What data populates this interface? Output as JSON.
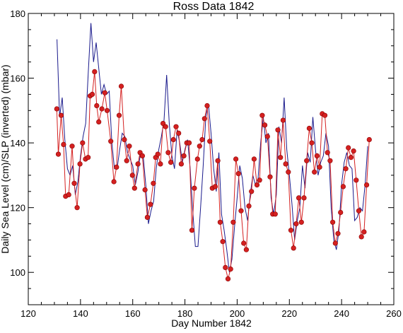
{
  "chart_data": {
    "type": "line",
    "title": "Ross Data 1842",
    "xlabel": "Day Number 1842",
    "ylabel": "Daily Sea Level (cm)/SLP (inverted) (mbar)",
    "xlim": [
      120,
      260
    ],
    "ylim": [
      90,
      180
    ],
    "xticks": [
      120,
      140,
      160,
      180,
      200,
      220,
      240,
      260
    ],
    "yticks": [
      100,
      120,
      140,
      160,
      180
    ],
    "grid": false,
    "legend": "none",
    "colors": {
      "blue_series": "#1a1a8c",
      "red_series": "#d42020",
      "marker_edge": "#8b0000",
      "axis": "#000000"
    },
    "series": [
      {
        "style": "line-blue",
        "points": [
          [
            131,
            172
          ],
          [
            132,
            148
          ],
          [
            133,
            154
          ],
          [
            134,
            141
          ],
          [
            135,
            132
          ],
          [
            136,
            130
          ],
          [
            137,
            133
          ],
          [
            138,
            124
          ],
          [
            139,
            128
          ],
          [
            140,
            136
          ],
          [
            141,
            142
          ],
          [
            142,
            146
          ],
          [
            143,
            162
          ],
          [
            144,
            177
          ],
          [
            145,
            165
          ],
          [
            146,
            171
          ],
          [
            147,
            163
          ],
          [
            148,
            155
          ],
          [
            149,
            158
          ],
          [
            150,
            155
          ],
          [
            151,
            156
          ],
          [
            152,
            140
          ],
          [
            153,
            132
          ],
          [
            154,
            132
          ],
          [
            155,
            138
          ],
          [
            156,
            143
          ],
          [
            157,
            142
          ],
          [
            158,
            137
          ],
          [
            159,
            135
          ],
          [
            160,
            133
          ],
          [
            161,
            127
          ],
          [
            162,
            131
          ],
          [
            163,
            137
          ],
          [
            164,
            136
          ],
          [
            165,
            127
          ],
          [
            166,
            115
          ],
          [
            167,
            119
          ],
          [
            168,
            122
          ],
          [
            169,
            132
          ],
          [
            170,
            138
          ],
          [
            171,
            142
          ],
          [
            172,
            147
          ],
          [
            173,
            161
          ],
          [
            174,
            146
          ],
          [
            175,
            136
          ],
          [
            176,
            132
          ],
          [
            177,
            144
          ],
          [
            178,
            140
          ],
          [
            179,
            134
          ],
          [
            180,
            138
          ],
          [
            181,
            141
          ],
          [
            182,
            132
          ],
          [
            183,
            119
          ],
          [
            184,
            108
          ],
          [
            185,
            108
          ],
          [
            186,
            120
          ],
          [
            187,
            133
          ],
          [
            188,
            148
          ],
          [
            189,
            152
          ],
          [
            190,
            143
          ],
          [
            191,
            132
          ],
          [
            192,
            125
          ],
          [
            193,
            137
          ],
          [
            194,
            118
          ],
          [
            195,
            113
          ],
          [
            196,
            107
          ],
          [
            197,
            100
          ],
          [
            198,
            104
          ],
          [
            199,
            114
          ],
          [
            200,
            123
          ],
          [
            201,
            133
          ],
          [
            202,
            129
          ],
          [
            203,
            120
          ],
          [
            204,
            116
          ],
          [
            205,
            124
          ],
          [
            206,
            130
          ],
          [
            207,
            127
          ],
          [
            208,
            129
          ],
          [
            209,
            140
          ],
          [
            210,
            148
          ],
          [
            211,
            140
          ],
          [
            212,
            143
          ],
          [
            213,
            123
          ],
          [
            214,
            118
          ],
          [
            215,
            124
          ],
          [
            216,
            145
          ],
          [
            217,
            140
          ],
          [
            218,
            154
          ],
          [
            219,
            138
          ],
          [
            220,
            130
          ],
          [
            221,
            121
          ],
          [
            222,
            110
          ],
          [
            223,
            116
          ],
          [
            224,
            120
          ],
          [
            225,
            133
          ],
          [
            226,
            126
          ],
          [
            227,
            137
          ],
          [
            228,
            134
          ],
          [
            229,
            148
          ],
          [
            230,
            138
          ],
          [
            231,
            130
          ],
          [
            232,
            134
          ],
          [
            233,
            136
          ],
          [
            234,
            143
          ],
          [
            235,
            139
          ],
          [
            236,
            120
          ],
          [
            237,
            110
          ],
          [
            238,
            107
          ],
          [
            239,
            113
          ],
          [
            240,
            127
          ],
          [
            241,
            134
          ],
          [
            242,
            137
          ],
          [
            243,
            133
          ],
          [
            244,
            132
          ],
          [
            245,
            116
          ],
          [
            246,
            117
          ],
          [
            247,
            120
          ],
          [
            248,
            119
          ],
          [
            249,
            127
          ],
          [
            250,
            139
          ]
        ]
      },
      {
        "style": "line-red-markers",
        "points": [
          [
            130.9,
            150.5
          ],
          [
            131.5,
            136.5
          ],
          [
            132.6,
            148.5
          ],
          [
            133.5,
            139.5
          ],
          [
            134.3,
            123.5
          ],
          [
            135.5,
            124.0
          ],
          [
            136.8,
            139.0
          ],
          [
            137.6,
            127.5
          ],
          [
            138.7,
            120.0
          ],
          [
            139.8,
            133.5
          ],
          [
            140.8,
            140.0
          ],
          [
            141.9,
            135.0
          ],
          [
            142.9,
            135.5
          ],
          [
            143.7,
            154.5
          ],
          [
            144.5,
            155.0
          ],
          [
            145.4,
            162.0
          ],
          [
            146.2,
            151.5
          ],
          [
            147.0,
            146.5
          ],
          [
            148.2,
            150.5
          ],
          [
            149.3,
            155.5
          ],
          [
            150.2,
            150.0
          ],
          [
            151.6,
            140.5
          ],
          [
            152.8,
            128.0
          ],
          [
            153.8,
            132.5
          ],
          [
            154.8,
            148.5
          ],
          [
            155.6,
            157.5
          ],
          [
            156.8,
            141.0
          ],
          [
            157.7,
            134.5
          ],
          [
            158.7,
            139.0
          ],
          [
            159.9,
            130.0
          ],
          [
            160.7,
            126.0
          ],
          [
            162.0,
            133.5
          ],
          [
            162.8,
            137.0
          ],
          [
            163.7,
            136.0
          ],
          [
            164.7,
            125.5
          ],
          [
            165.6,
            117.0
          ],
          [
            166.8,
            121.0
          ],
          [
            167.9,
            127.5
          ],
          [
            168.8,
            135.5
          ],
          [
            169.6,
            136.5
          ],
          [
            170.6,
            133.5
          ],
          [
            171.6,
            146.0
          ],
          [
            172.6,
            145.0
          ],
          [
            173.6,
            137.0
          ],
          [
            174.6,
            134.0
          ],
          [
            175.6,
            141.0
          ],
          [
            176.6,
            145.0
          ],
          [
            177.6,
            143.0
          ],
          [
            178.6,
            133.5
          ],
          [
            179.6,
            136.0
          ],
          [
            180.7,
            140.0
          ],
          [
            181.6,
            140.0
          ],
          [
            182.7,
            113.0
          ],
          [
            183.6,
            126.0
          ],
          [
            184.8,
            135.0
          ],
          [
            185.6,
            139.0
          ],
          [
            186.6,
            141.0
          ],
          [
            187.5,
            147.5
          ],
          [
            188.5,
            151.5
          ],
          [
            189.5,
            140.5
          ],
          [
            190.5,
            126.0
          ],
          [
            191.6,
            126.5
          ],
          [
            192.6,
            134.5
          ],
          [
            193.5,
            115.5
          ],
          [
            194.5,
            109.5
          ],
          [
            195.5,
            101.5
          ],
          [
            196.5,
            98.0
          ],
          [
            197.5,
            101.0
          ],
          [
            198.5,
            115.5
          ],
          [
            199.5,
            135.0
          ],
          [
            200.5,
            130.5
          ],
          [
            201.5,
            119.0
          ],
          [
            202.5,
            109.0
          ],
          [
            203.5,
            107.0
          ],
          [
            204.5,
            120.5
          ],
          [
            205.5,
            125.0
          ],
          [
            206.5,
            135.0
          ],
          [
            207.6,
            127.0
          ],
          [
            208.6,
            128.5
          ],
          [
            209.6,
            148.5
          ],
          [
            210.6,
            145.5
          ],
          [
            211.6,
            142.0
          ],
          [
            212.6,
            129.5
          ],
          [
            213.6,
            118.0
          ],
          [
            214.6,
            118.0
          ],
          [
            215.6,
            144.0
          ],
          [
            216.6,
            135.5
          ],
          [
            217.6,
            147.0
          ],
          [
            218.6,
            133.5
          ],
          [
            219.6,
            131.0
          ],
          [
            220.6,
            113.0
          ],
          [
            221.6,
            107.5
          ],
          [
            222.6,
            115.0
          ],
          [
            223.6,
            123.0
          ],
          [
            224.6,
            115.5
          ],
          [
            225.6,
            123.0
          ],
          [
            226.6,
            134.5
          ],
          [
            227.6,
            144.5
          ],
          [
            228.6,
            140.0
          ],
          [
            229.6,
            131.0
          ],
          [
            230.6,
            136.0
          ],
          [
            231.6,
            132.5
          ],
          [
            232.6,
            149.0
          ],
          [
            233.6,
            148.5
          ],
          [
            234.6,
            137.0
          ],
          [
            235.6,
            134.5
          ],
          [
            236.6,
            115.5
          ],
          [
            237.6,
            109.0
          ],
          [
            238.6,
            112.0
          ],
          [
            239.6,
            118.5
          ],
          [
            240.6,
            126.5
          ],
          [
            241.6,
            132.0
          ],
          [
            242.6,
            138.5
          ],
          [
            243.6,
            135.5
          ],
          [
            244.6,
            137.5
          ],
          [
            245.6,
            128.5
          ],
          [
            246.6,
            119.0
          ],
          [
            247.6,
            111.0
          ],
          [
            248.6,
            112.5
          ],
          [
            249.6,
            127.0
          ],
          [
            250.6,
            141.0
          ]
        ]
      }
    ]
  }
}
